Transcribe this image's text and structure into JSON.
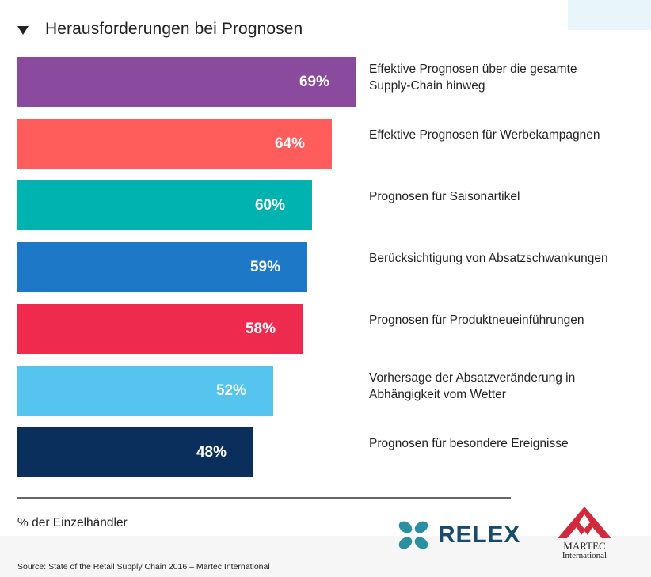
{
  "chart_data": {
    "type": "bar",
    "orientation": "horizontal",
    "title": "Herausforderungen bei Prognosen",
    "categories": [
      "Effektive Prognosen über die gesamte\nSupply-Chain hinweg",
      "Effektive Prognosen für Werbekampagnen",
      "Prognosen für Saisonartikel",
      "Berücksichtigung von Absatzschwankungen",
      "Prognosen für Produktneueinführungen",
      "Vorhersage der Absatzveränderung in\nAbhängigkeit vom Wetter",
      "Prognosen für besondere Ereignisse"
    ],
    "values": [
      69,
      64,
      60,
      59,
      58,
      52,
      48
    ],
    "value_labels": [
      "69%",
      "64%",
      "60%",
      "59%",
      "58%",
      "52%",
      "48%"
    ],
    "colors": [
      "#8a4a9e",
      "#ff5c5c",
      "#00b2b0",
      "#1e78c8",
      "#ee2a4e",
      "#55c5ef",
      "#0a2f5c"
    ],
    "xlabel": "% der Einzelhändler",
    "xlim": [
      0,
      100
    ],
    "grid": false,
    "legend": "none"
  },
  "source": "Source: State of the Retail Supply Chain 2016 – Martec International",
  "logos": {
    "relex": "RELEX",
    "martec_line1": "MARTEC",
    "martec_line2": "International"
  },
  "colors": {
    "relex": "#1a4a6e",
    "relex_mark": "#2a8fa0",
    "martec": "#d12a3c",
    "corner": "#e8f6fb"
  }
}
